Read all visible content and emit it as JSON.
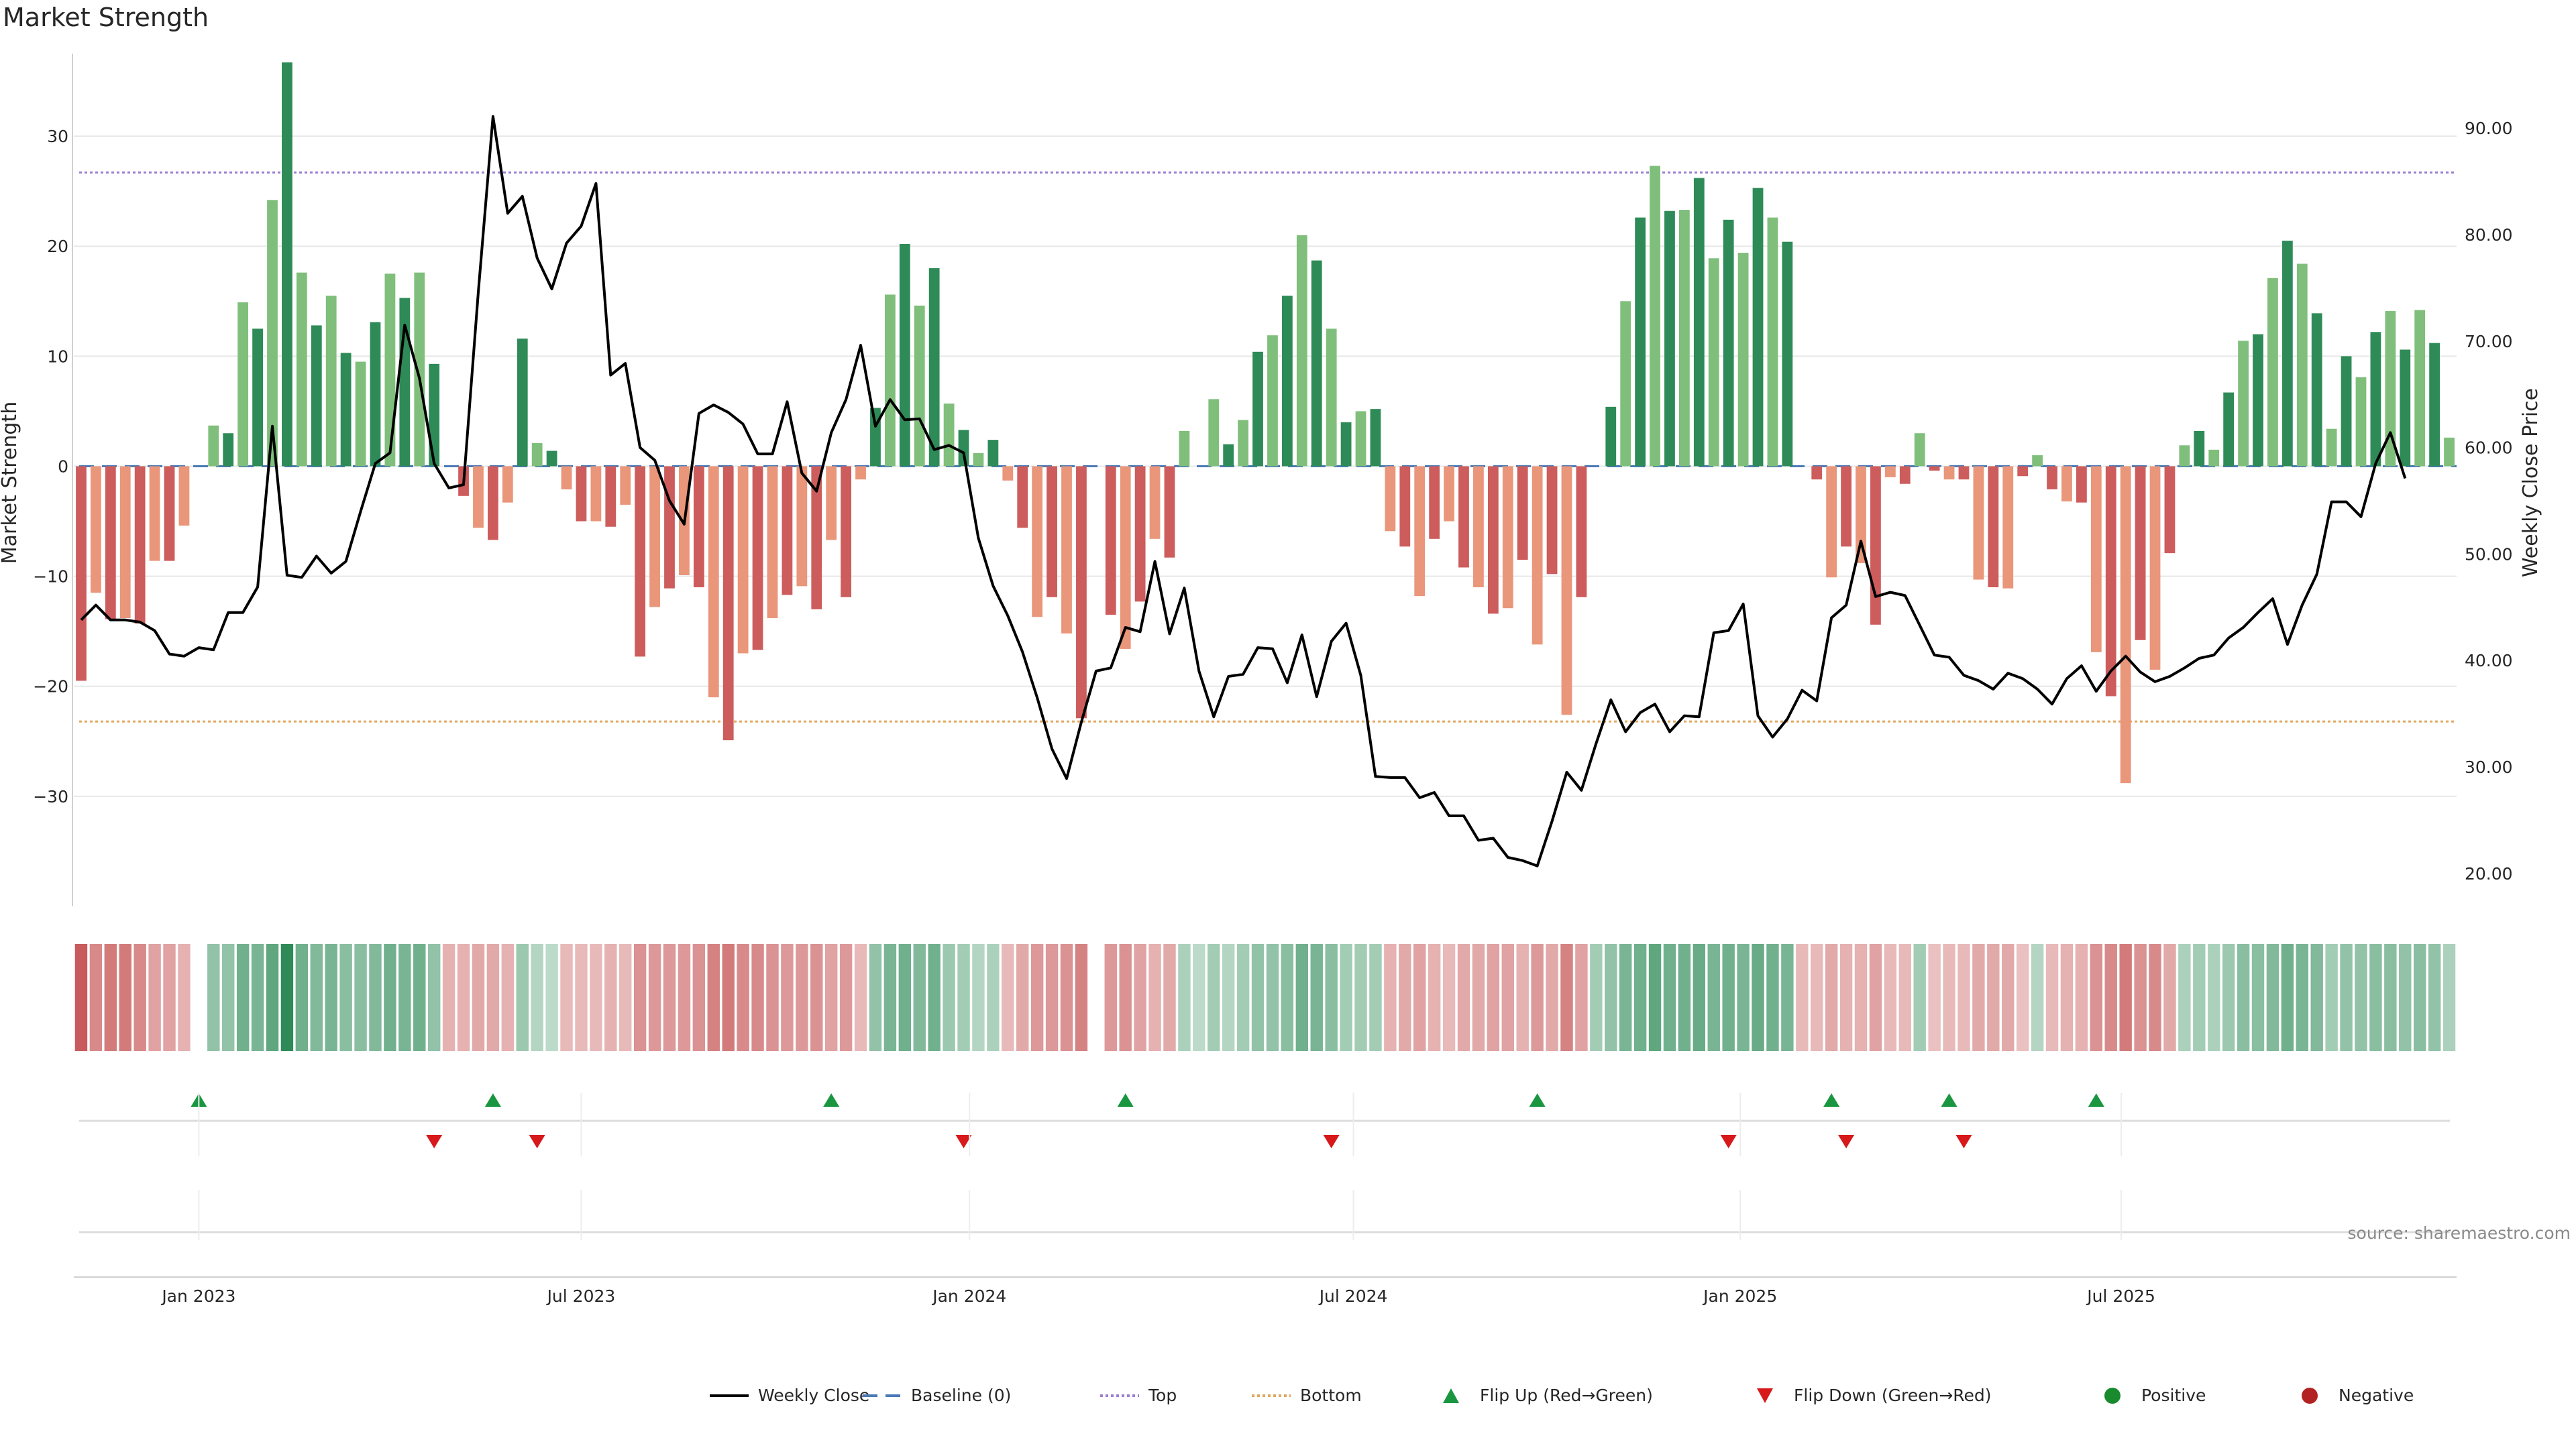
{
  "chart_data": {
    "type": "bar",
    "title": "Market Strength",
    "ylabel": "Market Strength",
    "ylabel_right": "Weekly Close Price",
    "source": "source: sharemaestro.com",
    "ylim": [
      -40,
      37.5
    ],
    "y_ticks": [
      30,
      20,
      10,
      0,
      -10,
      -20,
      -30
    ],
    "y_tick_labels": [
      "30",
      "20",
      "10",
      "0",
      "−10",
      "−20",
      "−30"
    ],
    "ylim_right": [
      16.9,
      97.0
    ],
    "y_right_ticks": [
      20,
      30,
      40,
      50,
      60,
      70,
      80,
      90
    ],
    "y_right_tick_labels": [
      "20.00",
      "30.00",
      "40.00",
      "50.00",
      "60.00",
      "70.00",
      "80.00",
      "90.00"
    ],
    "x_ticks": [
      {
        "label": "Jan 2023",
        "week": 8
      },
      {
        "label": "Jul 2023",
        "week": 34
      },
      {
        "label": "Jan 2024",
        "week": 60.4
      },
      {
        "label": "Jul 2024",
        "week": 86.5
      },
      {
        "label": "Jan 2025",
        "week": 112.8
      },
      {
        "label": "Jul 2025",
        "week": 138.7
      }
    ],
    "top_line": 26.7,
    "bottom_line": -23.2,
    "strength": [
      -19.5,
      -11.5,
      -13.9,
      -13.8,
      -14.3,
      -8.6,
      -8.6,
      -5.4,
      0,
      3.7,
      3.0,
      14.9,
      12.5,
      24.2,
      36.7,
      17.6,
      12.8,
      15.5,
      10.3,
      9.5,
      13.1,
      17.5,
      15.3,
      17.6,
      9.3,
      0,
      -2.7,
      -5.6,
      -6.7,
      -3.3,
      11.6,
      2.1,
      1.4,
      -2.1,
      -5.0,
      -5.0,
      -5.5,
      -3.5,
      -17.3,
      -12.8,
      -11.1,
      -9.9,
      -11.0,
      -21.0,
      -24.9,
      -17.0,
      -16.7,
      -13.8,
      -11.7,
      -10.9,
      -13.0,
      -6.7,
      -11.9,
      -1.2,
      5.3,
      15.6,
      20.2,
      14.6,
      18.0,
      5.7,
      3.3,
      1.2,
      2.4,
      -1.3,
      -5.6,
      -13.7,
      -11.9,
      -15.2,
      -22.9,
      0,
      -13.5,
      -16.6,
      -12.3,
      -6.6,
      -8.3,
      3.2,
      0,
      6.1,
      2.0,
      4.2,
      10.4,
      11.9,
      15.5,
      21.0,
      18.7,
      12.5,
      4.0,
      5.0,
      5.2,
      -5.9,
      -7.3,
      -11.8,
      -6.6,
      -5.0,
      -9.2,
      -11.0,
      -13.4,
      -12.9,
      -8.5,
      -16.2,
      -9.8,
      -22.6,
      -11.9,
      0,
      5.4,
      15.0,
      22.6,
      27.3,
      23.2,
      23.3,
      26.2,
      18.9,
      22.4,
      19.4,
      25.3,
      22.6,
      20.4,
      0,
      -1.2,
      -10.1,
      -7.3,
      -8.8,
      -14.4,
      -1.0,
      -1.6,
      3.0,
      -0.4,
      -1.2,
      -1.2,
      -10.3,
      -11.0,
      -11.1,
      -0.9,
      1.0,
      -2.1,
      -3.2,
      -3.3,
      -16.9,
      -20.9,
      -28.8,
      -15.8,
      -18.5,
      -7.9,
      1.9,
      3.2,
      1.5,
      6.7,
      11.4,
      12.0,
      17.1,
      20.5,
      18.4,
      13.9,
      3.4,
      10.0,
      8.1,
      12.2,
      14.1,
      10.6,
      14.2,
      11.2,
      2.6
    ],
    "weekly_close": [
      43.8,
      45.2,
      43.8,
      43.8,
      43.6,
      42.8,
      40.6,
      40.4,
      41.2,
      41.0,
      44.5,
      44.5,
      46.9,
      62.0,
      48.0,
      47.8,
      49.8,
      48.2,
      49.3,
      54.0,
      58.5,
      59.5,
      71.5,
      66.5,
      58.5,
      56.2,
      56.5,
      74.6,
      91.1,
      82.0,
      83.6,
      77.8,
      74.9,
      79.2,
      80.8,
      84.8,
      66.8,
      67.9,
      60.0,
      58.8,
      55.0,
      52.8,
      63.2,
      64.0,
      63.3,
      62.2,
      59.4,
      59.4,
      64.3,
      57.6,
      55.9,
      61.4,
      64.5,
      69.6,
      62.0,
      64.5,
      62.6,
      62.7,
      59.8,
      60.2,
      59.5,
      51.5,
      47.0,
      44.2,
      40.8,
      36.5,
      31.7,
      28.9,
      34.2,
      39.0,
      39.3,
      43.1,
      42.7,
      49.3,
      42.5,
      46.8,
      39.0,
      34.7,
      38.5,
      38.7,
      41.2,
      41.1,
      37.9,
      42.4,
      36.6,
      41.8,
      43.5,
      38.6,
      29.1,
      29.0,
      29.0,
      27.1,
      27.6,
      25.4,
      25.4,
      23.1,
      23.3,
      21.5,
      21.2,
      20.7,
      24.9,
      29.5,
      27.8,
      32.2,
      36.3,
      33.3,
      35.1,
      35.9,
      33.3,
      34.8,
      34.7,
      42.6,
      42.8,
      45.3,
      34.8,
      32.8,
      34.5,
      37.2,
      36.2,
      44.0,
      45.2,
      51.2,
      46.0,
      46.4,
      46.1,
      43.3,
      40.5,
      40.3,
      38.6,
      38.1,
      37.3,
      38.8,
      38.3,
      37.3,
      35.9,
      38.3,
      39.5,
      37.1,
      39.0,
      40.4,
      38.9,
      38.0,
      38.5,
      39.3,
      40.2,
      40.5,
      42.1,
      43.1,
      44.5,
      45.8,
      41.5,
      45.2,
      48.1,
      54.9,
      54.9,
      53.5,
      58.5,
      61.4,
      57.1
    ],
    "heatmap": [
      -0.8,
      -0.5,
      -0.6,
      -0.6,
      -0.5,
      -0.35,
      -0.35,
      -0.25,
      0,
      0.4,
      0.4,
      0.6,
      0.55,
      0.7,
      1.0,
      0.6,
      0.5,
      0.55,
      0.45,
      0.45,
      0.5,
      0.6,
      0.55,
      0.6,
      0.4,
      -0.25,
      -0.25,
      -0.3,
      -0.3,
      -0.25,
      0.35,
      0.2,
      0.15,
      -0.2,
      -0.2,
      -0.2,
      -0.25,
      -0.2,
      -0.45,
      -0.4,
      -0.4,
      -0.4,
      -0.45,
      -0.55,
      -0.6,
      -0.5,
      -0.5,
      -0.45,
      -0.4,
      -0.4,
      -0.45,
      -0.35,
      -0.4,
      -0.2,
      0.4,
      0.55,
      0.6,
      0.5,
      0.6,
      0.35,
      0.3,
      0.2,
      0.25,
      -0.2,
      -0.3,
      -0.4,
      -0.4,
      -0.45,
      -0.55,
      0,
      -0.4,
      -0.45,
      -0.35,
      -0.25,
      -0.3,
      0.25,
      0.15,
      0.3,
      0.2,
      0.3,
      0.4,
      0.4,
      0.45,
      0.6,
      0.55,
      0.45,
      0.3,
      0.3,
      0.3,
      -0.25,
      -0.3,
      -0.35,
      -0.25,
      -0.2,
      -0.3,
      -0.3,
      -0.35,
      -0.35,
      -0.25,
      -0.4,
      -0.3,
      -0.55,
      -0.35,
      0.3,
      0.4,
      0.55,
      0.6,
      0.7,
      0.6,
      0.6,
      0.65,
      0.55,
      0.6,
      0.55,
      0.65,
      0.6,
      0.55,
      -0.2,
      -0.2,
      -0.3,
      -0.25,
      -0.25,
      -0.35,
      -0.2,
      -0.2,
      0.3,
      -0.15,
      -0.2,
      -0.2,
      -0.3,
      -0.3,
      -0.3,
      -0.15,
      0.2,
      -0.2,
      -0.25,
      -0.25,
      -0.45,
      -0.5,
      -0.6,
      -0.45,
      -0.5,
      -0.3,
      0.25,
      0.3,
      0.25,
      0.35,
      0.45,
      0.45,
      0.5,
      0.6,
      0.55,
      0.5,
      0.3,
      0.4,
      0.4,
      0.45,
      0.45,
      0.4,
      0.45,
      0.4,
      0.25
    ],
    "flip_up_weeks": [
      8,
      28,
      51,
      71,
      99,
      119,
      127,
      137
    ],
    "flip_down_weeks": [
      24,
      31,
      60,
      85,
      112,
      120,
      128
    ],
    "legend": [
      {
        "label": "Weekly Close",
        "symbol": "line-black"
      },
      {
        "label": "Baseline (0)",
        "symbol": "dash-blue"
      },
      {
        "label": "Top",
        "symbol": "dot-purple"
      },
      {
        "label": "Bottom",
        "symbol": "dot-orange"
      },
      {
        "label": "Flip Up (Red→Green)",
        "symbol": "triangle-up-green"
      },
      {
        "label": "Flip Down (Green→Red)",
        "symbol": "triangle-down-red"
      },
      {
        "label": "Positive",
        "symbol": "circle-green"
      },
      {
        "label": "Negative",
        "symbol": "circle-red"
      }
    ],
    "colors": {
      "bar_dark_green": "#2e8b57",
      "bar_light_green": "#7fbf7b",
      "bar_dark_red": "#cd5c5c",
      "bar_light_red": "#e9967a",
      "close_line": "#000000",
      "baseline": "#4a7ab5",
      "top_line": "#9b7fd4",
      "bottom_line": "#e0a860",
      "flip_up": "#1a9641",
      "flip_down": "#d7191c",
      "positive": "#1a8a2e",
      "negative": "#b22222",
      "grid": "#e8e8e8"
    }
  }
}
